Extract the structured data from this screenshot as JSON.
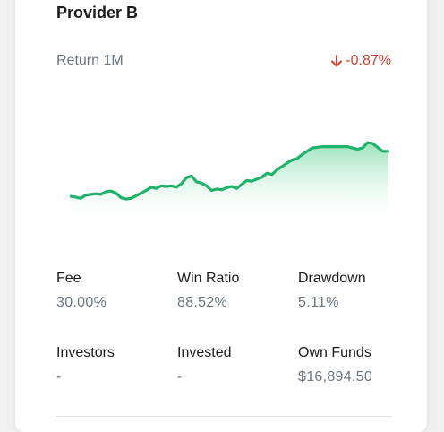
{
  "provider": {
    "name": "Provider B"
  },
  "return": {
    "label": "Return 1M",
    "value": "-0.87%",
    "trend": "down"
  },
  "colors": {
    "negative": "#d23f31",
    "line": "#1fb26a",
    "fill_top": "#8fe0b3",
    "fill_bottom": "#ffffff"
  },
  "stats": {
    "fee": {
      "label": "Fee",
      "value": "30.00%"
    },
    "win_ratio": {
      "label": "Win Ratio",
      "value": "88.52%"
    },
    "drawdown": {
      "label": "Drawdown",
      "value": "5.11%"
    },
    "investors": {
      "label": "Investors",
      "value": "-"
    },
    "invested": {
      "label": "Invested",
      "value": "-"
    },
    "own_funds": {
      "label": "Own Funds",
      "value": "$16,894.50"
    }
  },
  "chart_data": {
    "type": "area",
    "values": [
      0.12,
      0.11,
      0.09,
      0.14,
      0.15,
      0.16,
      0.15,
      0.19,
      0.2,
      0.17,
      0.1,
      0.08,
      0.09,
      0.13,
      0.17,
      0.21,
      0.26,
      0.24,
      0.28,
      0.27,
      0.28,
      0.26,
      0.31,
      0.4,
      0.43,
      0.34,
      0.32,
      0.28,
      0.21,
      0.23,
      0.22,
      0.25,
      0.27,
      0.24,
      0.3,
      0.36,
      0.35,
      0.38,
      0.41,
      0.47,
      0.45,
      0.52,
      0.57,
      0.62,
      0.67,
      0.69,
      0.75,
      0.8,
      0.85,
      0.86,
      0.87,
      0.87,
      0.87,
      0.87,
      0.87,
      0.87,
      0.85,
      0.83,
      0.85,
      0.93,
      0.92,
      0.86,
      0.8,
      0.8
    ]
  }
}
